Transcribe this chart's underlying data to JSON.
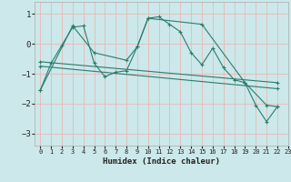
{
  "xlabel": "Humidex (Indice chaleur)",
  "bg_color": "#cce8ea",
  "grid_color": "#e8b8b8",
  "line_color": "#2a7d6e",
  "xlim": [
    -0.5,
    23
  ],
  "ylim": [
    -3.4,
    1.4
  ],
  "yticks": [
    -3,
    -2,
    -1,
    0,
    1
  ],
  "xticks": [
    0,
    1,
    2,
    3,
    4,
    5,
    6,
    7,
    8,
    9,
    10,
    11,
    12,
    13,
    14,
    15,
    16,
    17,
    18,
    19,
    20,
    21,
    22,
    23
  ],
  "series": [
    {
      "x": [
        0,
        1,
        2,
        3,
        4,
        5,
        6,
        7,
        8,
        9,
        10,
        11,
        12,
        13,
        14,
        15,
        16,
        17,
        18,
        19,
        20,
        21,
        22
      ],
      "y": [
        -1.55,
        -0.65,
        -0.05,
        0.55,
        0.6,
        -0.65,
        -1.1,
        -0.95,
        -0.9,
        -0.1,
        0.85,
        0.9,
        0.65,
        0.4,
        -0.3,
        -0.7,
        -0.15,
        -0.8,
        -1.2,
        -1.3,
        -2.05,
        -2.6,
        -2.1
      ]
    },
    {
      "x": [
        0,
        3,
        5,
        8,
        9,
        10,
        15,
        19,
        21,
        22
      ],
      "y": [
        -1.55,
        0.6,
        -0.3,
        -0.55,
        -0.1,
        0.85,
        0.65,
        -1.3,
        -2.05,
        -2.1
      ]
    },
    {
      "x": [
        0,
        22
      ],
      "y": [
        -0.6,
        -1.3
      ]
    },
    {
      "x": [
        0,
        22
      ],
      "y": [
        -0.75,
        -1.5
      ]
    }
  ]
}
